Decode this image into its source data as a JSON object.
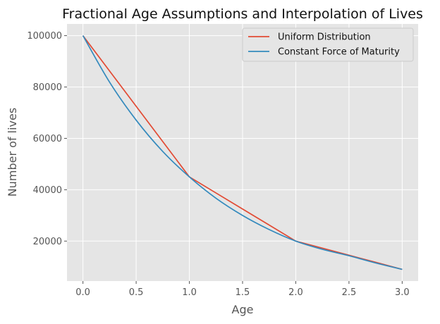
{
  "chart_data": {
    "type": "line",
    "title": "Fractional Age Assumptions and Interpolation of Lives",
    "xlabel": "Age",
    "ylabel": "Number of lives",
    "xlim": [
      -0.15,
      3.15
    ],
    "ylim": [
      4450,
      104550
    ],
    "xticks": [
      0.0,
      0.5,
      1.0,
      1.5,
      2.0,
      2.5,
      3.0
    ],
    "xtick_labels": [
      "0.0",
      "0.5",
      "1.0",
      "1.5",
      "2.0",
      "2.5",
      "3.0"
    ],
    "yticks": [
      20000,
      40000,
      60000,
      80000,
      100000
    ],
    "ytick_labels": [
      "20000",
      "40000",
      "60000",
      "80000",
      "100000"
    ],
    "grid": true,
    "legend": "top-right",
    "x": [
      0.0,
      0.25,
      0.5,
      0.75,
      1.0,
      1.25,
      1.5,
      1.75,
      2.0,
      2.25,
      2.5,
      2.75,
      3.0
    ],
    "series": [
      {
        "name": "Uniform Distribution",
        "color": "#E24A33",
        "values": [
          100000,
          86250,
          72500,
          58750,
          45000,
          38750,
          32500,
          26250,
          20000,
          17250,
          14500,
          11750,
          9000
        ]
      },
      {
        "name": "Constant Force of Maturity",
        "color": "#348ABD",
        "values": [
          100000,
          81900,
          67100,
          54900,
          45000,
          36700,
          30000,
          24500,
          20000,
          16800,
          14300,
          11500,
          9000
        ]
      }
    ]
  }
}
